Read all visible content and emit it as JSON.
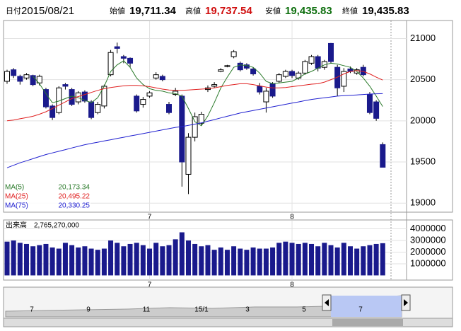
{
  "header": {
    "date_label": "日付",
    "date": "2015/08/21",
    "fields": [
      {
        "label": "始値",
        "value": "19,711.34",
        "color": "#000000"
      },
      {
        "label": "高値",
        "value": "19,737.54",
        "color": "#d01010"
      },
      {
        "label": "安値",
        "value": "19,435.83",
        "color": "#107010"
      },
      {
        "label": "終値",
        "value": "19,435.83",
        "color": "#000000"
      }
    ]
  },
  "chart_data": [
    {
      "type": "candlestick",
      "categories": [
        null,
        null,
        null,
        null,
        null,
        null,
        null,
        null,
        null,
        null,
        null,
        null,
        null,
        null,
        null,
        null,
        null,
        null,
        null,
        null,
        null,
        null,
        "7",
        null,
        null,
        null,
        null,
        null,
        null,
        null,
        null,
        null,
        null,
        null,
        null,
        null,
        null,
        null,
        null,
        null,
        null,
        null,
        null,
        null,
        "8",
        null,
        null,
        null,
        null,
        null,
        null,
        null,
        null,
        null,
        null,
        null,
        null,
        null,
        null
      ],
      "open": [
        20480,
        20620,
        20540,
        20520,
        20550,
        20460,
        20380,
        20180,
        20100,
        20440,
        20380,
        20230,
        20350,
        20230,
        20100,
        20180,
        20560,
        20900,
        20780,
        20760,
        20300,
        20200,
        20300,
        20520,
        20540,
        20200,
        20320,
        20300,
        19350,
        19800,
        19970,
        20380,
        20420,
        20600,
        20660,
        20780,
        20700,
        20680,
        20630,
        20420,
        20230,
        20450,
        20480,
        20540,
        20600,
        20520,
        20580,
        20700,
        20780,
        20650,
        20940,
        20650,
        20420,
        20630,
        20580,
        20650,
        20320,
        20230,
        19711.34
      ],
      "high": [
        20620,
        20640,
        20560,
        20580,
        20560,
        20560,
        20400,
        20200,
        20420,
        20460,
        20400,
        20360,
        20370,
        20250,
        20230,
        20440,
        20860,
        20950,
        20800,
        20770,
        20320,
        20290,
        20360,
        20590,
        20560,
        20230,
        20400,
        20320,
        19850,
        20100,
        20110,
        20430,
        20470,
        20640,
        20680,
        20860,
        20720,
        20700,
        20650,
        20460,
        20400,
        20470,
        20580,
        20620,
        20620,
        20600,
        20740,
        20800,
        20800,
        20740,
        20946,
        20680,
        20640,
        20660,
        20640,
        20680,
        20350,
        20250,
        19737.54
      ],
      "low": [
        20450,
        20520,
        20440,
        20500,
        20420,
        20430,
        20150,
        20010,
        20080,
        20380,
        20180,
        20200,
        20220,
        20020,
        20080,
        20150,
        20540,
        20820,
        20700,
        20650,
        20100,
        20160,
        20280,
        20500,
        20480,
        20080,
        20300,
        19200,
        19110,
        19750,
        19940,
        20350,
        20400,
        20590,
        20650,
        20760,
        20600,
        20620,
        20550,
        20320,
        20100,
        20280,
        20460,
        20520,
        20520,
        20500,
        20560,
        20680,
        20600,
        20620,
        20700,
        20300,
        20350,
        20580,
        20560,
        20540,
        20080,
        20000,
        19435.83
      ],
      "close": [
        20600,
        20550,
        20480,
        20560,
        20440,
        20540,
        20170,
        20040,
        20400,
        20420,
        20200,
        20340,
        20240,
        20040,
        20200,
        20420,
        20830,
        20880,
        20760,
        20700,
        20120,
        20260,
        20340,
        20560,
        20500,
        20100,
        20360,
        19500,
        19800,
        20050,
        20080,
        20400,
        20440,
        20620,
        20670,
        20840,
        20620,
        20640,
        20570,
        20350,
        20360,
        20300,
        20560,
        20600,
        20550,
        20580,
        20720,
        20780,
        20640,
        20720,
        20720,
        20400,
        20600,
        20600,
        20620,
        20560,
        20100,
        20030,
        19435.83
      ],
      "up_color": "#ffffff",
      "down_color": "#1a1a8c",
      "series": [
        {
          "name": "MA(5)",
          "color": "#2a7a2a",
          "last_label": "20,173.34",
          "values": [
            null,
            null,
            null,
            null,
            20540,
            20450,
            20330,
            20220,
            20240,
            20270,
            20300,
            20280,
            20250,
            20220,
            20280,
            20420,
            20600,
            20680,
            20730,
            20650,
            20520,
            20440,
            20390,
            20370,
            20360,
            20340,
            20330,
            20300,
            20150,
            19990,
            19940,
            20060,
            20220,
            20400,
            20530,
            20650,
            20680,
            20670,
            20650,
            20580,
            20480,
            20450,
            20460,
            20470,
            20480,
            20520,
            20570,
            20600,
            20640,
            20680,
            20700,
            20690,
            20670,
            20650,
            20600,
            20520,
            20420,
            20300,
            20173.34
          ]
        },
        {
          "name": "MA(25)",
          "color": "#e02020",
          "last_label": "20,495.22",
          "values": [
            20000,
            20010,
            20025,
            20040,
            20055,
            20080,
            20110,
            20150,
            20190,
            20230,
            20270,
            20295,
            20320,
            20345,
            20370,
            20390,
            20405,
            20415,
            20425,
            20430,
            20430,
            20425,
            20415,
            20400,
            20385,
            20375,
            20370,
            20370,
            20375,
            20380,
            20385,
            20390,
            20400,
            20415,
            20430,
            20440,
            20450,
            20450,
            20440,
            20425,
            20410,
            20400,
            20400,
            20405,
            20415,
            20425,
            20435,
            20445,
            20450,
            20470,
            20500,
            20530,
            20570,
            20600,
            20610,
            20600,
            20570,
            20530,
            20495.22
          ]
        },
        {
          "name": "MA(75)",
          "color": "#2020d0",
          "last_label": "20,330.25",
          "values": [
            19430,
            19460,
            19490,
            19515,
            19540,
            19565,
            19590,
            19610,
            19630,
            19650,
            19670,
            19690,
            19710,
            19725,
            19740,
            19755,
            19770,
            19785,
            19800,
            19815,
            19830,
            19845,
            19860,
            19875,
            19890,
            19905,
            19920,
            19930,
            19945,
            19960,
            19975,
            19995,
            20015,
            20035,
            20055,
            20075,
            20095,
            20110,
            20125,
            20140,
            20155,
            20170,
            20185,
            20200,
            20215,
            20230,
            20245,
            20260,
            20270,
            20280,
            20290,
            20300,
            20305,
            20310,
            20315,
            20320,
            20325,
            20328,
            20330.25
          ]
        }
      ],
      "ylim": [
        18890,
        21210
      ],
      "yticks": [
        19000,
        19500,
        20000,
        20500,
        21000
      ],
      "grid": true
    },
    {
      "type": "bar",
      "name": "出来高",
      "last_label": "2,765,270,000",
      "color": "#1a1a8c",
      "values": [
        2900000,
        3000000,
        2800000,
        2700000,
        2500000,
        2600000,
        2700000,
        2400000,
        2300000,
        2800000,
        2600000,
        2400000,
        2500000,
        2300000,
        2200000,
        2300000,
        3000000,
        2800000,
        2500000,
        2700000,
        2800000,
        2600000,
        2300000,
        2800000,
        2500000,
        2600000,
        3100000,
        3700000,
        3000000,
        2700000,
        2500000,
        2600000,
        2200000,
        2400000,
        2200000,
        2500000,
        2300000,
        2200000,
        2400000,
        2300000,
        2300000,
        2400000,
        2800000,
        2900000,
        2800000,
        2700000,
        2800000,
        2700000,
        2500000,
        2800000,
        2600000,
        2400000,
        2800000,
        2500000,
        2300000,
        2500000,
        2600000,
        2700000,
        2765270
      ],
      "ylim": [
        -400000,
        4700000
      ],
      "yticks": [
        1000000,
        2000000,
        3000000,
        4000000
      ],
      "grid": true
    }
  ],
  "navigator": {
    "labels": [
      "7",
      "9",
      "11",
      "15/1",
      "3",
      "5",
      "7"
    ]
  }
}
